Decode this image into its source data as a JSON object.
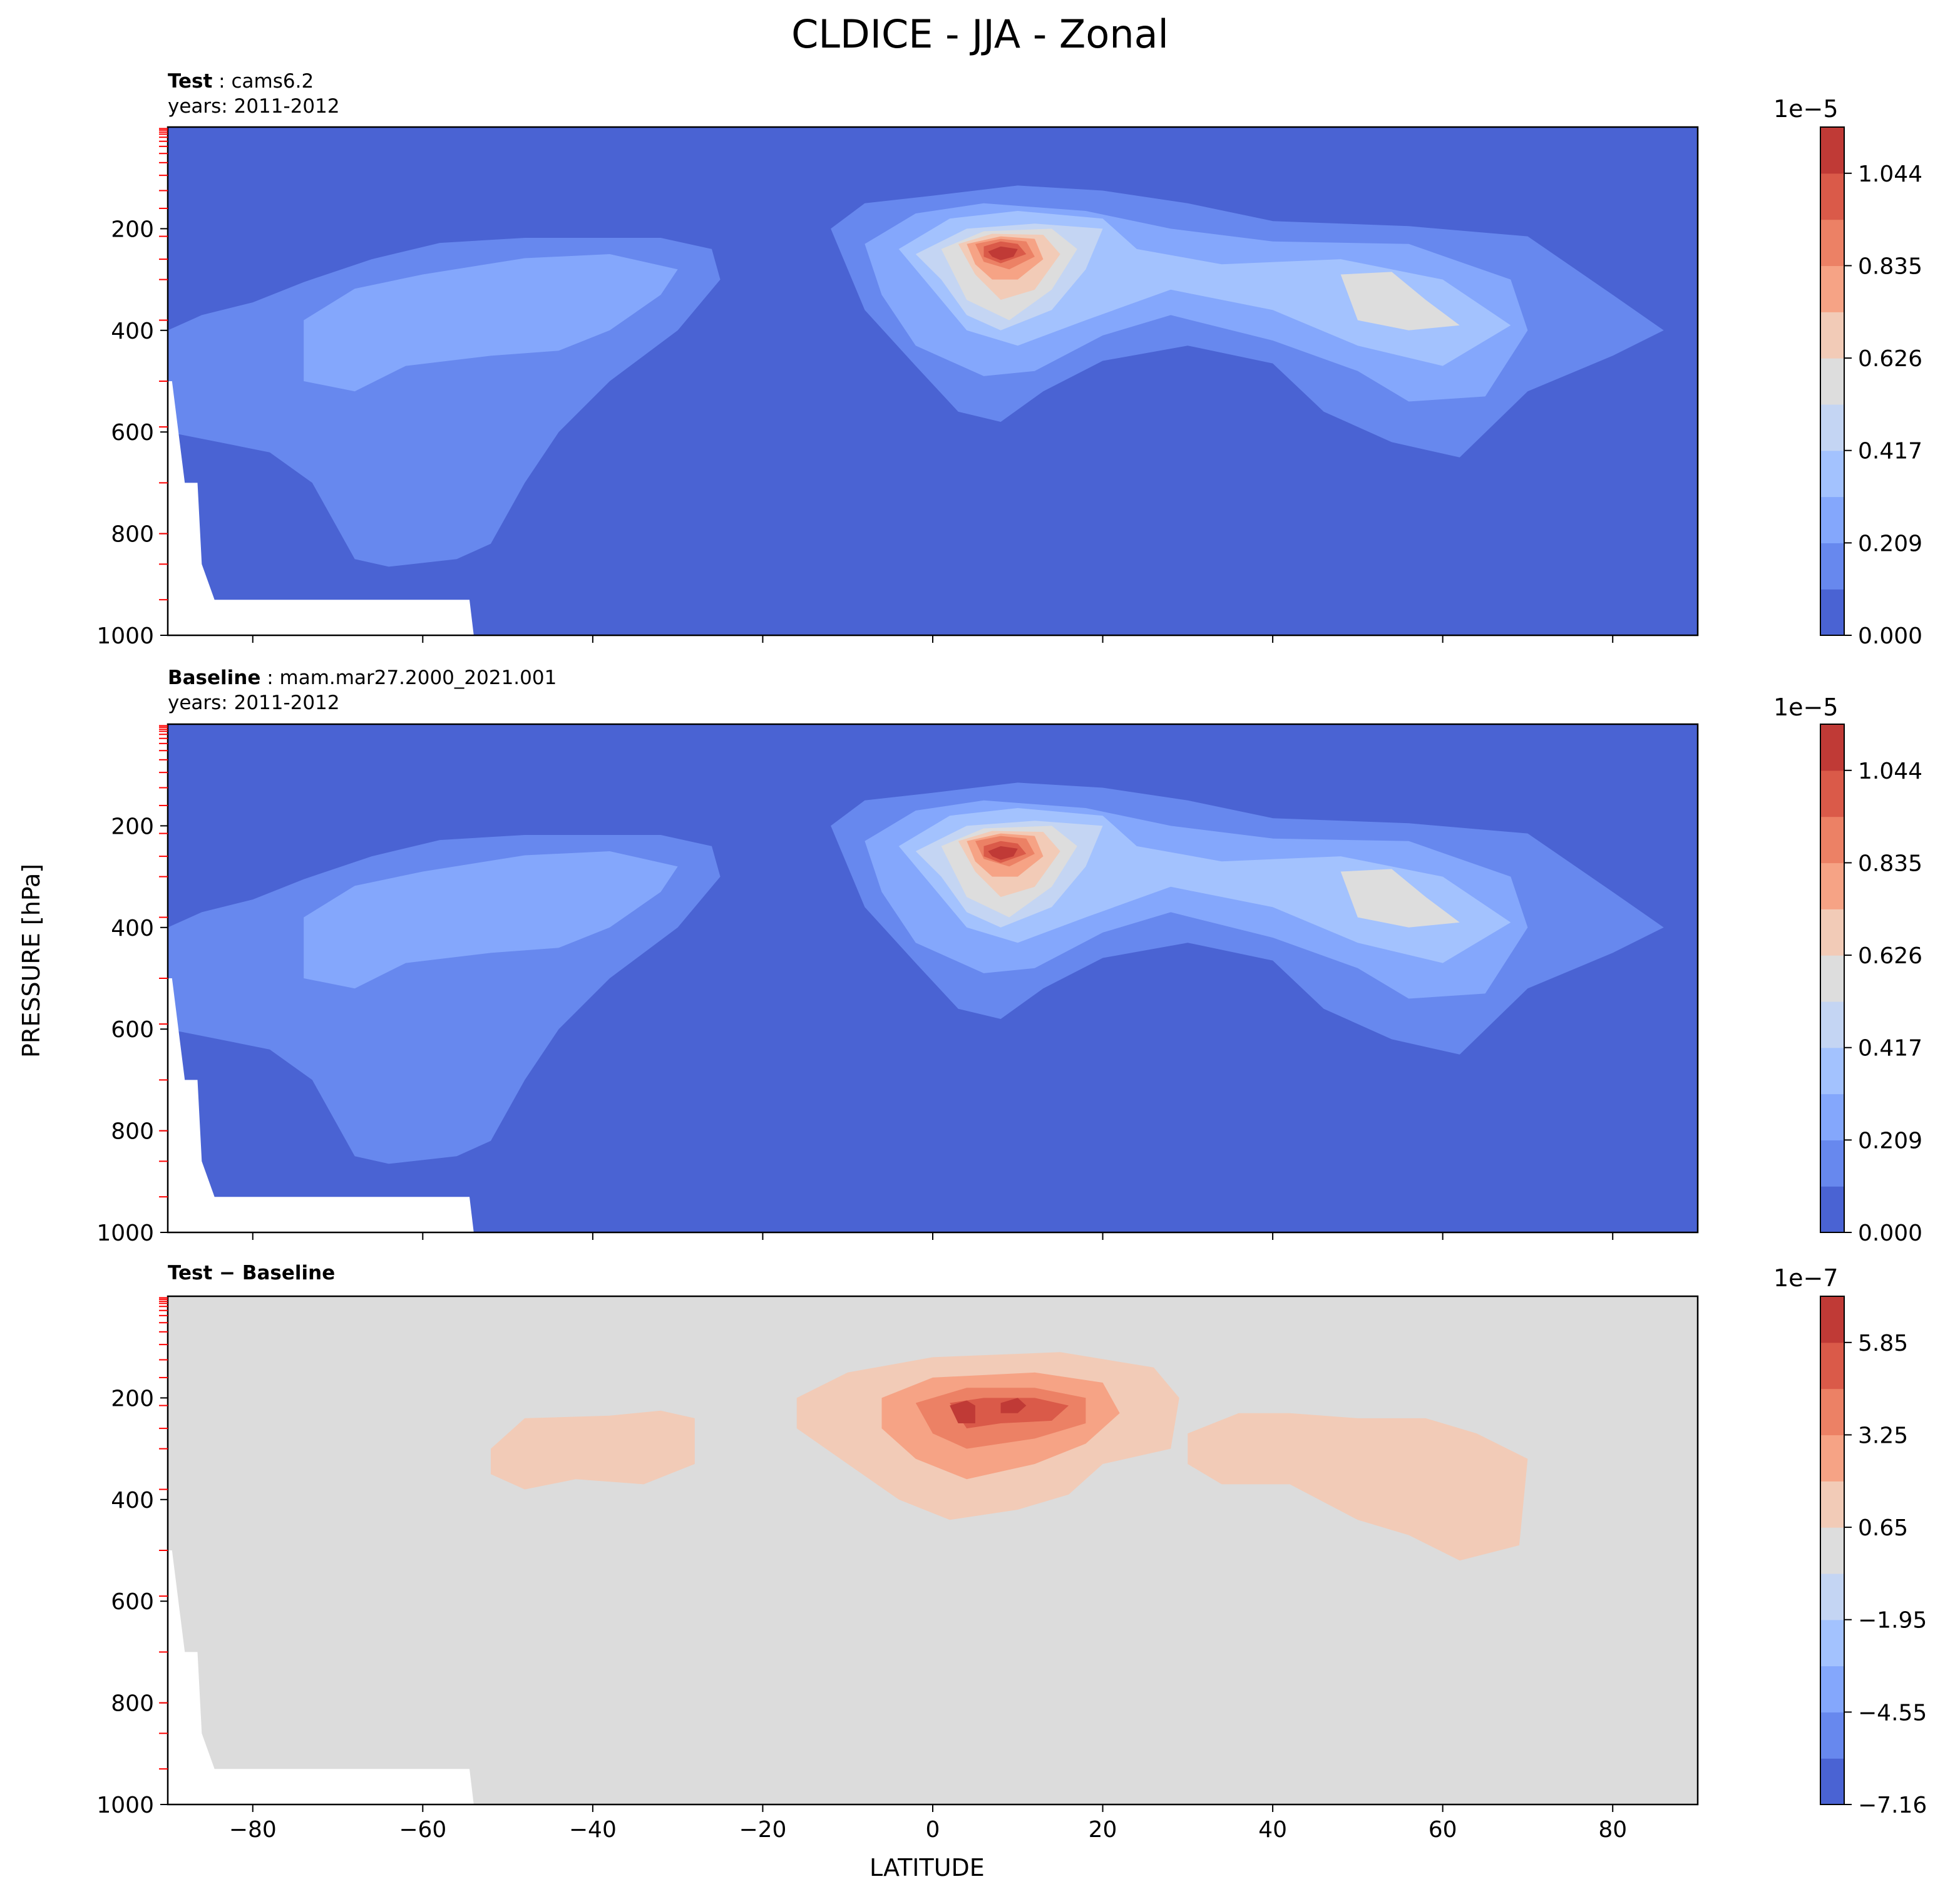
{
  "suptitle": "CLDICE - JJA - Zonal",
  "panels": [
    {
      "label": "Test",
      "name": "cams6.2",
      "years": "years: 2011-2012",
      "cbar_exponent": "1e−5",
      "cbar_ticks": [
        "0.000",
        "0.209",
        "0.417",
        "0.626",
        "0.835",
        "1.044"
      ]
    },
    {
      "label": "Baseline",
      "name": "mam.mar27.2000_2021.001",
      "years": "years: 2011-2012",
      "cbar_exponent": "1e−5",
      "cbar_ticks": [
        "0.000",
        "0.209",
        "0.417",
        "0.626",
        "0.835",
        "1.044"
      ]
    },
    {
      "label": "Test − Baseline",
      "name": "",
      "years": "",
      "cbar_exponent": "1e−7",
      "cbar_ticks": [
        "−7.16",
        "−4.55",
        "−1.95",
        "0.65",
        "3.25",
        "5.85"
      ]
    }
  ],
  "xlabel": "LATITUDE",
  "ylabel": "PRESSURE [hPa]",
  "colors": {
    "cool": [
      "#4a63d3",
      "#6788ee",
      "#84a7fc",
      "#a3c2fe",
      "#c4d5f3",
      "#dddddd",
      "#f2cbb7",
      "#f6a385",
      "#ec8165",
      "#da5a49",
      "#c03a36"
    ],
    "diff_bg": "#dcdcdc",
    "diff_pos": [
      "#f2cbb7",
      "#f6a385",
      "#ec8165",
      "#da5a49",
      "#c03a36"
    ],
    "level_tick": "#ff0000"
  },
  "chart_data": [
    {
      "type": "contour",
      "title": "Test : cams6.2",
      "variable": "CLDICE",
      "season": "JJA",
      "x": [
        -90,
        -80,
        -60,
        -40,
        -20,
        0,
        20,
        40,
        60,
        80,
        90
      ],
      "xlim": [
        -90,
        90
      ],
      "ylim": [
        1000,
        0
      ],
      "yticks": [
        200,
        400,
        600,
        800,
        1000
      ],
      "xticks": [
        -80,
        -60,
        -40,
        -20,
        0,
        20,
        40,
        60,
        80
      ],
      "colorbar_scale": "1e-5",
      "colorbar_levels": [
        0.0,
        0.104,
        0.209,
        0.313,
        0.417,
        0.522,
        0.626,
        0.731,
        0.835,
        0.94,
        1.044,
        1.148
      ],
      "features": [
        {
          "region": "southern mid-latitude ice layer",
          "lat_range": [
            -90,
            -25
          ],
          "pressure_range": [
            210,
            880
          ],
          "peak": 0.3
        },
        {
          "region": "tropical maximum",
          "lat_range": [
            -10,
            22
          ],
          "pressure_range": [
            120,
            580
          ],
          "peak_lat": 8,
          "peak_pressure": 250,
          "peak": 1.1
        },
        {
          "region": "northern mid-latitude layer",
          "lat_range": [
            22,
            85
          ],
          "pressure_range": [
            190,
            660
          ],
          "peak_lat": 52,
          "peak_pressure": 350,
          "peak": 0.6
        }
      ]
    },
    {
      "type": "contour",
      "title": "Baseline : mam.mar27.2000_2021.001",
      "variable": "CLDICE",
      "season": "JJA",
      "xlim": [
        -90,
        90
      ],
      "ylim": [
        1000,
        0
      ],
      "yticks": [
        200,
        400,
        600,
        800,
        1000
      ],
      "xticks": [
        -80,
        -60,
        -40,
        -20,
        0,
        20,
        40,
        60,
        80
      ],
      "colorbar_scale": "1e-5",
      "colorbar_levels": [
        0.0,
        0.104,
        0.209,
        0.313,
        0.417,
        0.522,
        0.626,
        0.731,
        0.835,
        0.94,
        1.044,
        1.148
      ],
      "features": [
        {
          "region": "southern mid-latitude ice layer",
          "lat_range": [
            -90,
            -25
          ],
          "pressure_range": [
            210,
            880
          ],
          "peak": 0.3
        },
        {
          "region": "tropical maximum",
          "lat_range": [
            -10,
            22
          ],
          "pressure_range": [
            120,
            580
          ],
          "peak_lat": 8,
          "peak_pressure": 250,
          "peak": 1.05
        },
        {
          "region": "northern mid-latitude layer",
          "lat_range": [
            22,
            85
          ],
          "pressure_range": [
            190,
            660
          ],
          "peak_lat": 52,
          "peak_pressure": 350,
          "peak": 0.55
        }
      ]
    },
    {
      "type": "contour",
      "title": "Test − Baseline",
      "variable": "CLDICE",
      "season": "JJA",
      "xlim": [
        -90,
        90
      ],
      "ylim": [
        1000,
        0
      ],
      "yticks": [
        200,
        400,
        600,
        800,
        1000
      ],
      "xticks": [
        -80,
        -60,
        -40,
        -20,
        0,
        20,
        40,
        60,
        80
      ],
      "colorbar_scale": "1e-7",
      "colorbar_levels": [
        -7.16,
        -5.86,
        -4.55,
        -3.25,
        -1.95,
        -0.65,
        0.65,
        1.95,
        3.25,
        4.55,
        5.85,
        7.16
      ],
      "features": [
        {
          "region": "southern positive difference",
          "lat_range": [
            -52,
            -28
          ],
          "pressure_range": [
            220,
            380
          ],
          "value": 1.3
        },
        {
          "region": "tropical positive difference",
          "lat_range": [
            -16,
            30
          ],
          "pressure_range": [
            110,
            420
          ],
          "peak_lat": 3,
          "peak_pressure": 220,
          "peak": 6.5
        },
        {
          "region": "northern positive difference",
          "lat_range": [
            30,
            70
          ],
          "pressure_range": [
            230,
            520
          ],
          "value": 1.3
        }
      ]
    }
  ]
}
